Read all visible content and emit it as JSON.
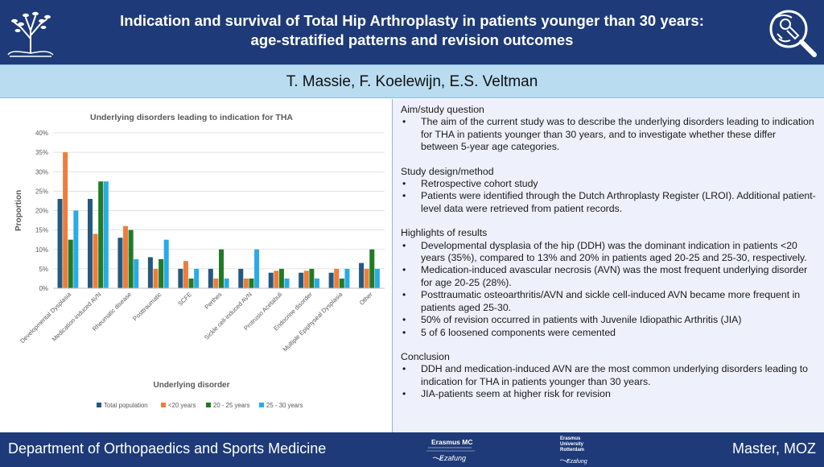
{
  "header": {
    "title_line1": "Indication and survival of Total Hip Arthroplasty in patients younger than 30 years:",
    "title_line2": "age-stratified patterns and revision outcomes"
  },
  "authors": "T. Massie, F. Koelewijn, E.S. Veltman",
  "colors": {
    "header_bg": "#1e3a78",
    "authors_bg": "#b9dcf1",
    "text_panel_bg": "#eef0fb",
    "series": [
      "#25597e",
      "#ee7d3b",
      "#207a27",
      "#28abe6"
    ]
  },
  "chart_data": {
    "type": "bar",
    "title": "Underlying disorders leading to indication for THA",
    "xlabel": "Underlying disorder",
    "ylabel": "Proportion",
    "ylim": [
      0,
      40
    ],
    "yticks": [
      "0%",
      "5%",
      "10%",
      "15%",
      "20%",
      "25%",
      "30%",
      "35%",
      "40%"
    ],
    "grid": true,
    "legend_position": "bottom",
    "categories": [
      "Developmental Dysplasia",
      "Medication-induced AVN",
      "Rheumatic disease",
      "Posttraumatic",
      "SCFE",
      "Perthes",
      "Sickle cell-induced AVN",
      "Protrusio Acetabuli",
      "Endocrine disorder",
      "Multiple Epiphyseal Dysplasia",
      "Other"
    ],
    "series": [
      {
        "name": "Total population",
        "values": [
          23,
          23,
          13,
          8,
          5,
          5,
          5,
          4,
          4,
          4,
          6.5
        ]
      },
      {
        "name": "<20 years",
        "values": [
          35,
          14,
          16,
          5,
          7,
          2.5,
          2.5,
          4.5,
          4.5,
          5,
          5
        ]
      },
      {
        "name": "20 - 25 years",
        "values": [
          12.5,
          27.5,
          15,
          7.5,
          2.5,
          10,
          2.5,
          5,
          5,
          2.5,
          10
        ]
      },
      {
        "name": "25 - 30 years",
        "values": [
          20,
          27.5,
          7.5,
          12.5,
          5,
          2.5,
          10,
          2.5,
          2.5,
          5,
          5
        ]
      }
    ]
  },
  "sections": [
    {
      "title": "Aim/study question",
      "bullets": [
        "The aim of the current study was to describe the underlying disorders leading to indication for THA in patients younger than 30 years, and to investigate whether these differ between 5-year age categories."
      ]
    },
    {
      "title": "Study design/method",
      "bullets": [
        "Retrospective cohort study",
        "Patients were identified through the Dutch Arthroplasty Register (LROI). Additional patient-level data were retrieved from patient records."
      ]
    },
    {
      "title": "Highlights of results",
      "bullets": [
        "Developmental dysplasia of  the hip (DDH) was the dominant indication in patients <20 years (35%), compared to 13% and 20% in patients aged 20-25 and 25-30, respectively.",
        "Medication-induced avascular necrosis (AVN) was the most frequent underlying disorder for age 20-25 (28%).",
        "Posttraumatic osteoarthritis/AVN and sickle cell-induced AVN became more frequent in patients aged 25-30.",
        "50% of revision occurred in patients with Juvenile Idiopathic Arthritis (JIA)",
        "5 of 6 loosened components were cemented"
      ]
    },
    {
      "title": "Conclusion",
      "bullets": [
        "DDH and medication-induced AVN are the most common underlying disorders leading to indication for THA in patients younger than 30 years.",
        "JIA-patients seem at higher risk for revision"
      ]
    }
  ],
  "footer": {
    "department": "Department of Orthopaedics and Sports Medicine",
    "right_label": "Master, MOZ",
    "logo1": "Erasmus MC",
    "logo2_line1": "Erasmus",
    "logo2_line2": "University",
    "logo2_line3": "Rotterdam",
    "signature": "Ezafung"
  },
  "icons": [
    "tree-logo-icon",
    "hip-magnifier-icon"
  ]
}
